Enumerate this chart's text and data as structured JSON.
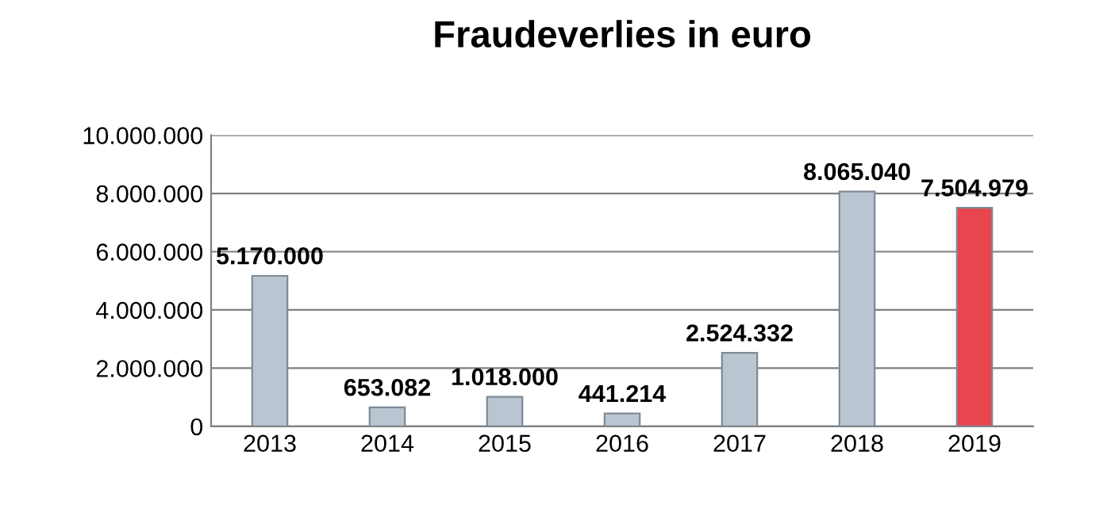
{
  "chart_data": {
    "type": "bar",
    "title": "Fraudeverlies in euro",
    "categories": [
      "2013",
      "2014",
      "2015",
      "2016",
      "2017",
      "2018",
      "2019"
    ],
    "values": [
      5170000,
      653082,
      1018000,
      441214,
      2524332,
      8065040,
      7504979
    ],
    "value_labels": [
      "5.170.000",
      "653.082",
      "1.018.000",
      "441.214",
      "2.524.332",
      "8.065.040",
      "7.504.979"
    ],
    "colors": [
      "#b9c5d1",
      "#b9c5d1",
      "#b9c5d1",
      "#b9c5d1",
      "#b9c5d1",
      "#b9c5d1",
      "#e8464f"
    ],
    "ylim": [
      0,
      10000000
    ],
    "yticks": [
      {
        "value": 0,
        "label": "0"
      },
      {
        "value": 2000000,
        "label": "2.000.000"
      },
      {
        "value": 4000000,
        "label": "4.000.000"
      },
      {
        "value": 6000000,
        "label": "6.000.000"
      },
      {
        "value": 8000000,
        "label": "8.000.000"
      },
      {
        "value": 10000000,
        "label": "10.000.000"
      }
    ],
    "grid": "y"
  }
}
